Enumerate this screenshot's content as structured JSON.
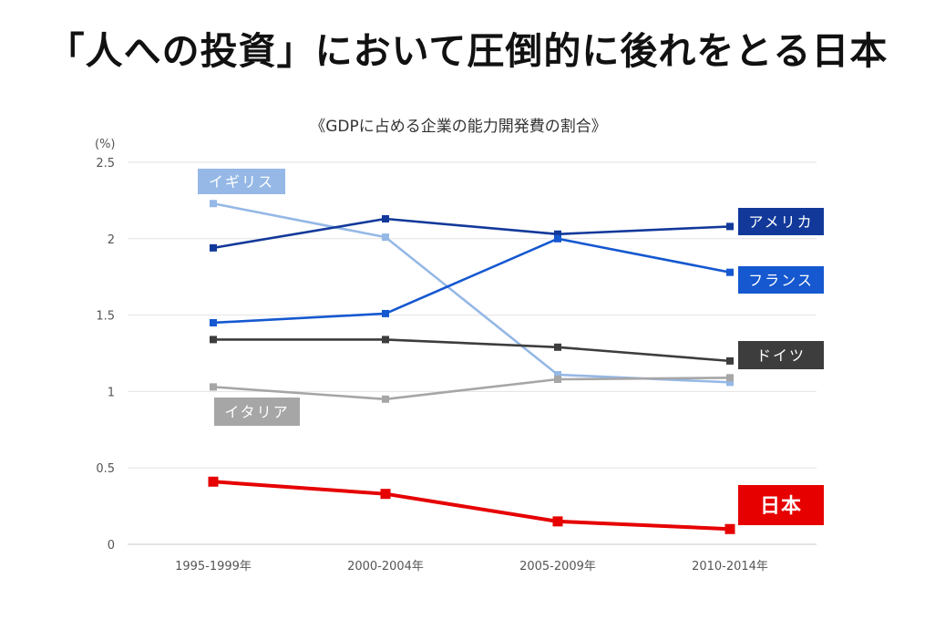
{
  "headline": "「人への投資」において圧倒的に後れをとる日本",
  "chart_data": {
    "type": "line",
    "title": "《GDPに占める企業の能力開発費の割合》",
    "ylabel": "(%)",
    "xlabel": "",
    "categories": [
      "1995-1999年",
      "2000-2004年",
      "2005-2009年",
      "2010-2014年"
    ],
    "ylim": [
      0,
      2.5
    ],
    "yticks": [
      0,
      0.5,
      1,
      1.5,
      2,
      2.5
    ],
    "ytick_labels": [
      "0",
      "0.5",
      "1",
      "1.5",
      "2",
      "2.5"
    ],
    "grid": true,
    "series": [
      {
        "name": "イギリス",
        "color": "#95b8e6",
        "values": [
          2.23,
          2.01,
          1.11,
          1.06
        ]
      },
      {
        "name": "アメリカ",
        "color": "#12399a",
        "values": [
          1.94,
          2.13,
          2.03,
          2.08
        ]
      },
      {
        "name": "フランス",
        "color": "#1558d0",
        "values": [
          1.45,
          1.51,
          2.0,
          1.78
        ]
      },
      {
        "name": "ドイツ",
        "color": "#3d3d3d",
        "values": [
          1.34,
          1.34,
          1.29,
          1.2
        ]
      },
      {
        "name": "イタリア",
        "color": "#a6a6a6",
        "values": [
          1.03,
          0.95,
          1.08,
          1.09
        ]
      },
      {
        "name": "日本",
        "color": "#e60000",
        "values": [
          0.41,
          0.33,
          0.15,
          0.1
        ]
      }
    ]
  }
}
